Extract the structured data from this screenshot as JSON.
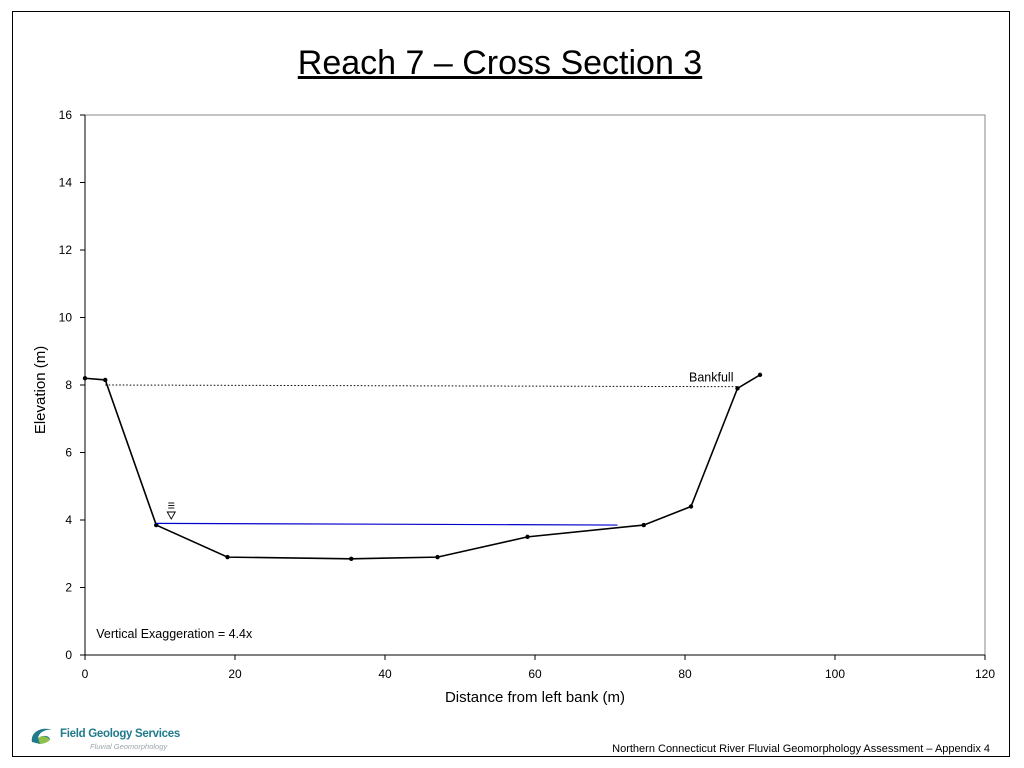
{
  "slide": {
    "title": "Reach 7 – Cross Section 3",
    "footer": "Northern Connecticut River Fluvial Geomorphology Assessment – Appendix 4"
  },
  "logo": {
    "name": "Field Geology Services",
    "tagline": "Fluvial Geomorphology"
  },
  "chart_data": {
    "type": "line",
    "xlabel": "Distance from left bank (m)",
    "ylabel": "Elevation (m)",
    "xlim": [
      0,
      120
    ],
    "ylim": [
      0,
      16
    ],
    "xticks": [
      0,
      20,
      40,
      60,
      80,
      100,
      120
    ],
    "yticks": [
      0,
      2,
      4,
      6,
      8,
      10,
      12,
      14,
      16
    ],
    "grid": false,
    "legend": "none",
    "series": [
      {
        "style": "solid",
        "color": "#000000",
        "markers": true,
        "points": [
          [
            0,
            8.2
          ],
          [
            2.7,
            8.15
          ],
          [
            9.5,
            3.85
          ],
          [
            19,
            2.9
          ],
          [
            35.5,
            2.85
          ],
          [
            47,
            2.9
          ],
          [
            59,
            3.5
          ],
          [
            74.5,
            3.85
          ],
          [
            80.8,
            4.4
          ],
          [
            87,
            7.9
          ],
          [
            90,
            8.3
          ]
        ]
      },
      {
        "style": "dotted",
        "color": "#000000",
        "markers": false,
        "points": [
          [
            2.7,
            8.0
          ],
          [
            87,
            7.95
          ]
        ]
      },
      {
        "style": "solid",
        "color": "#0000cc",
        "markers": false,
        "points": [
          [
            9.5,
            3.9
          ],
          [
            71,
            3.85
          ]
        ]
      }
    ],
    "annotations": [
      {
        "text": "Bankfull",
        "x": 83.5,
        "y": 8.1
      },
      {
        "text": "Vertical Exaggeration = 4.4x",
        "x": 1.5,
        "y": 0.5
      }
    ],
    "water_surface_symbol": {
      "x": 11.5,
      "y": 4.0
    }
  }
}
